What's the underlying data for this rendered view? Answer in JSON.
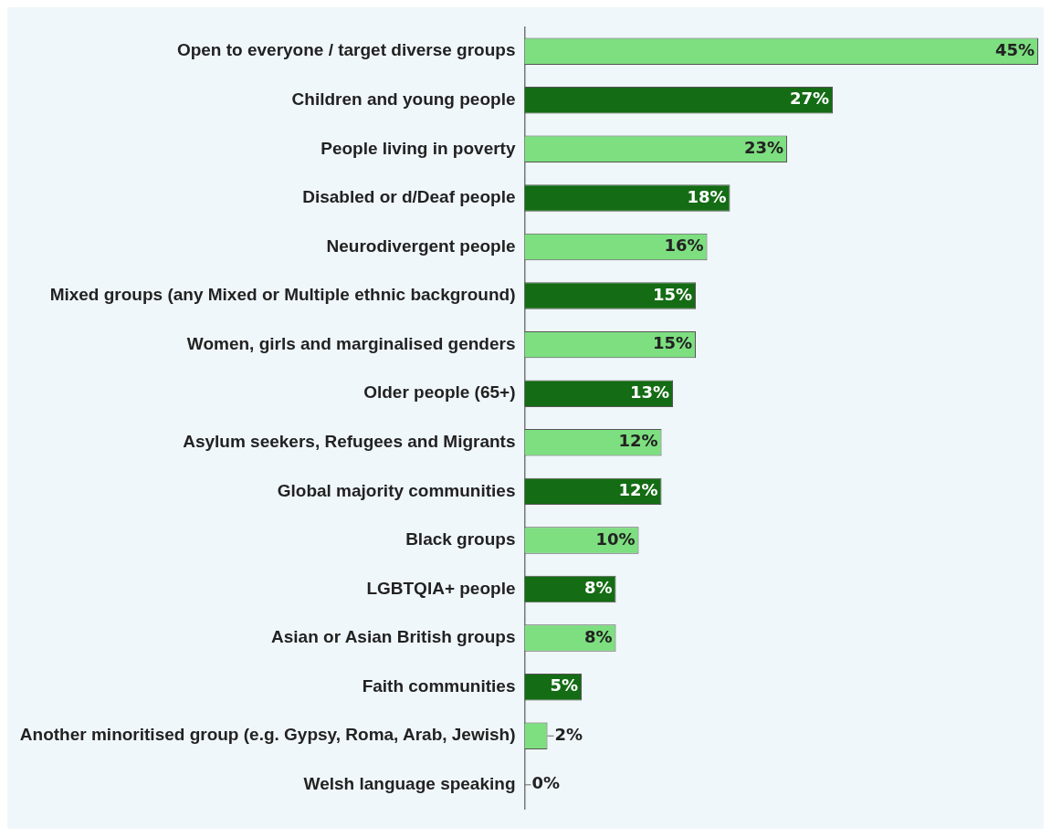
{
  "chart_data": {
    "type": "bar",
    "orientation": "horizontal",
    "categories": [
      "Open to everyone / target diverse groups",
      "Children and young people",
      "People living in poverty",
      "Disabled or d/Deaf people",
      "Neurodivergent people",
      "Mixed groups (any Mixed or Multiple ethnic background)",
      "Women, girls and marginalised genders",
      "Older people (65+)",
      "Asylum seekers, Refugees and Migrants",
      "Global majority communities",
      "Black groups",
      "LGBTQIA+ people",
      "Asian or Asian British groups",
      "Faith communities",
      "Another minoritised group (e.g. Gypsy, Roma, Arab, Jewish)",
      "Welsh language speaking"
    ],
    "values": [
      45,
      27,
      23,
      18,
      16,
      15,
      15,
      13,
      12,
      12,
      10,
      8,
      8,
      5,
      2,
      0
    ],
    "colors": [
      "#7ddf80",
      "#146c14",
      "#7ddf80",
      "#146c14",
      "#7ddf80",
      "#146c14",
      "#7ddf80",
      "#146c14",
      "#7ddf80",
      "#146c14",
      "#7ddf80",
      "#146c14",
      "#7ddf80",
      "#146c14",
      "#7ddf80",
      "#146c14"
    ],
    "value_labels": [
      "45%",
      "27%",
      "23%",
      "18%",
      "16%",
      "15%",
      "15%",
      "13%",
      "12%",
      "12%",
      "10%",
      "8%",
      "8%",
      "5%",
      "2%",
      "0%"
    ],
    "tick_labels": "y"
  }
}
